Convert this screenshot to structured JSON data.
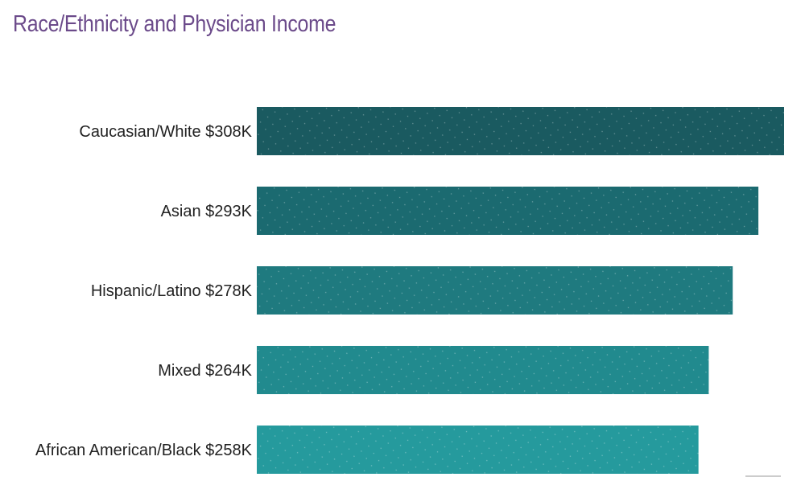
{
  "chart_data": {
    "type": "bar",
    "orientation": "horizontal",
    "title": "Race/Ethnicity and Physician Income",
    "categories": [
      "Caucasian/White",
      "Asian",
      "Hispanic/Latino",
      "Mixed",
      "African American/Black"
    ],
    "labels": [
      "Caucasian/White $308K",
      "Asian $293K",
      "Hispanic/Latino $278K",
      "Mixed $264K",
      "African American/Black $258K"
    ],
    "values": [
      308,
      293,
      278,
      264,
      258
    ],
    "value_unit": "$K",
    "colors": [
      "#1a5a60",
      "#1b6a70",
      "#1f7a7f",
      "#218a8e",
      "#259a9d"
    ],
    "xlabel": "",
    "ylabel": "",
    "grid": false,
    "legend": "none"
  }
}
